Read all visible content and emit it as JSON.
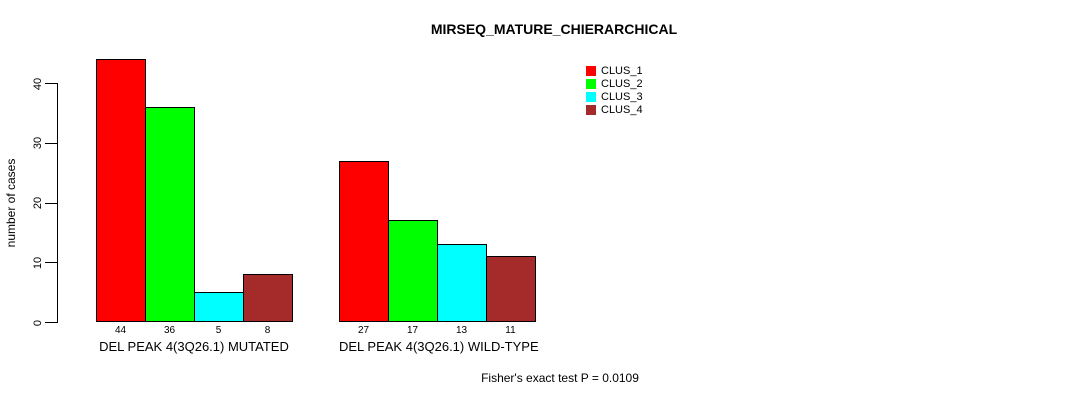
{
  "chart_data": {
    "type": "bar",
    "title": "MIRSEQ_MATURE_CHIERARCHICAL",
    "ylabel": "number of cases",
    "xlabel": "",
    "ylim": [
      0,
      44
    ],
    "yticks": [
      0,
      10,
      20,
      30,
      40
    ],
    "grid": false,
    "legend_position": "top-right",
    "series": [
      {
        "name": "CLUS_1",
        "color": "#ff0000"
      },
      {
        "name": "CLUS_2",
        "color": "#00ff00"
      },
      {
        "name": "CLUS_3",
        "color": "#00ffff"
      },
      {
        "name": "CLUS_4",
        "color": "#a52a2a"
      }
    ],
    "groups": [
      {
        "label": "DEL PEAK 4(3Q26.1) MUTATED",
        "values": [
          44,
          36,
          5,
          8
        ]
      },
      {
        "label": "DEL PEAK 4(3Q26.1) WILD-TYPE",
        "values": [
          27,
          17,
          13,
          11
        ]
      }
    ],
    "bar_border_color": "#000000",
    "annotation": "Fisher's exact test P = 0.0109"
  }
}
